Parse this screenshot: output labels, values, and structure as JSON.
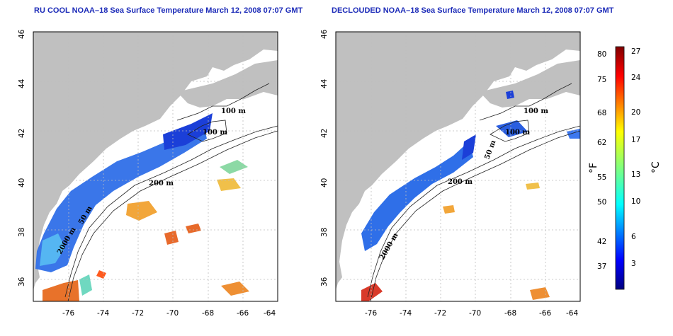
{
  "left_panel": {
    "title": "RU COOL NOAA–18 Sea Surface Temperature March 12, 2008 07:07 GMT",
    "contour_labels": [
      "100 m",
      "100 m",
      "50 m",
      "200 m",
      "50 m",
      "2000 m"
    ]
  },
  "right_panel": {
    "title": "DECLOUDED NOAA–18 Sea Surface Temperature March 12, 2008 07:07 GMT",
    "contour_labels": [
      "100 m",
      "100 m",
      "50 m",
      "200 m",
      "50 m",
      "2000 m"
    ]
  },
  "axes": {
    "lon_ticks": [
      "-76",
      "-74",
      "-72",
      "-70",
      "-68",
      "-66",
      "-64"
    ],
    "lat_ticks": [
      "46",
      "44",
      "42",
      "40",
      "38",
      "36"
    ]
  },
  "colorbar": {
    "left_unit": "°F",
    "right_unit": "°C",
    "fahrenheit_ticks": [
      "80",
      "75",
      "68",
      "62",
      "55",
      "50",
      "42",
      "37"
    ],
    "celsius_ticks": [
      "27",
      "24",
      "20",
      "17",
      "13",
      "10",
      "6",
      "3"
    ]
  },
  "colors": {
    "land": "#c0c0c0",
    "title": "#1c2bb8",
    "grid": "#bdbdbd"
  }
}
